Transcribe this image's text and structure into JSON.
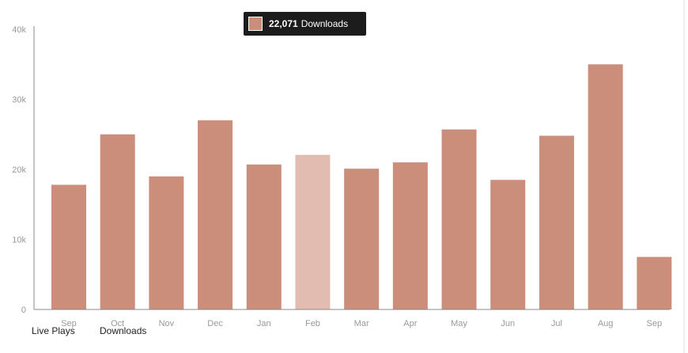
{
  "chart_data": {
    "type": "bar",
    "categories": [
      "Sep",
      "Oct",
      "Nov",
      "Dec",
      "Jan",
      "Feb",
      "Mar",
      "Apr",
      "May",
      "Jun",
      "Jul",
      "Aug",
      "Sep"
    ],
    "series": [
      {
        "values": [
          17800,
          25000,
          19000,
          27000,
          20700,
          22071,
          20100,
          21000,
          25700,
          18500,
          24800,
          35000,
          7500
        ]
      }
    ],
    "y_ticks": [
      "0",
      "10k",
      "20k",
      "30k",
      "40k"
    ],
    "ylim": [
      0,
      40000
    ],
    "highlighted_index": 5,
    "colors": {
      "bar": "#cb8e7a",
      "bar_highlight": "#e2bcb0",
      "axis": "#888888",
      "tick_text": "#999999"
    }
  },
  "tooltip": {
    "value": "22,071",
    "label": "Downloads"
  },
  "tabs": [
    {
      "label": "Live Plays"
    },
    {
      "label": "Downloads"
    }
  ]
}
